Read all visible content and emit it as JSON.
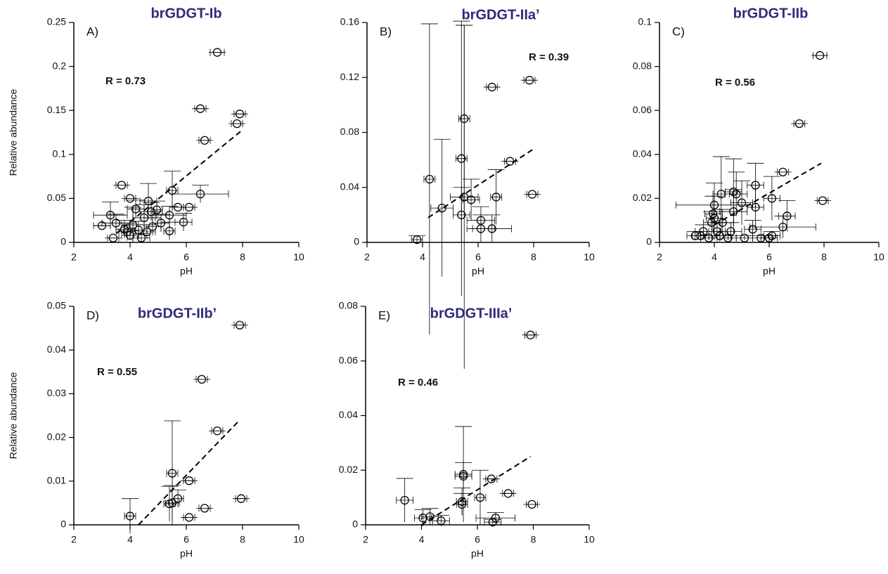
{
  "chart_data": [
    {
      "type": "scatter",
      "title": "brGDGT-Ib",
      "panel_label": "A)",
      "annotation": "R = 0.73",
      "x_label": "pH",
      "y_label": "Relative abundance",
      "title_color": "#2e2a7a",
      "color": "#000000",
      "x": [
        7.1,
        6.5,
        7.9,
        7.8,
        6.65,
        3.7,
        5.5,
        6.5,
        4.0,
        4.65,
        6.1,
        5.7,
        4.95,
        4.75,
        4.2,
        3.3,
        5.4,
        4.5,
        3.5,
        3.0,
        5.9,
        4.1,
        3.8,
        4.3,
        3.9,
        4.6,
        5.4,
        5.1,
        3.4,
        4.0,
        4.4,
        4.8
      ],
      "values": [
        0.216,
        0.152,
        0.146,
        0.135,
        0.116,
        0.065,
        0.059,
        0.055,
        0.05,
        0.047,
        0.04,
        0.04,
        0.037,
        0.035,
        0.038,
        0.031,
        0.031,
        0.028,
        0.022,
        0.019,
        0.023,
        0.02,
        0.015,
        0.014,
        0.012,
        0.012,
        0.013,
        0.022,
        0.005,
        0.008,
        0.005,
        0.018
      ],
      "xerr": [
        0.25,
        0.2,
        0.2,
        0.2,
        0.2,
        0.2,
        0.2,
        1.0,
        0.2,
        0.3,
        0.2,
        0.2,
        0.2,
        0.4,
        0.3,
        0.6,
        0.6,
        0.4,
        0.5,
        0.3,
        0.3,
        0.4,
        0.3,
        0.3,
        0.3,
        0.3,
        0.2,
        0.3,
        0.2,
        0.3,
        0.3,
        0.3
      ],
      "yerr": [
        0,
        0,
        0,
        0,
        0,
        0,
        0.022,
        0.01,
        0,
        0.02,
        0,
        0,
        0.01,
        0.01,
        0.01,
        0.015,
        0.01,
        0.015,
        0.01,
        0,
        0.01,
        0.02,
        0.01,
        0.01,
        0.01,
        0.008,
        0.01,
        0.01,
        0,
        0.005,
        0.005,
        0.01
      ],
      "trendline": {
        "x": [
          3.5,
          8
        ],
        "y": [
          0.01,
          0.128
        ]
      },
      "xlim": [
        2,
        10
      ],
      "ylim": [
        0,
        0.25
      ],
      "xticks": [
        2,
        4,
        6,
        8,
        10
      ],
      "yticks": [
        0,
        0.05,
        0.1,
        0.15,
        0.2,
        0.25
      ]
    },
    {
      "type": "scatter",
      "title": "brGDGT-IIa’",
      "panel_label": "B)",
      "annotation": "R = 0.39",
      "x_label": "pH",
      "title_color": "#2e2a7a",
      "color": "#000000",
      "x": [
        7.85,
        6.5,
        5.5,
        7.15,
        5.4,
        4.25,
        5.5,
        5.75,
        6.65,
        7.95,
        4.7,
        5.4,
        6.1,
        6.1,
        6.5,
        3.8
      ],
      "values": [
        0.118,
        0.113,
        0.09,
        0.059,
        0.061,
        0.046,
        0.033,
        0.031,
        0.033,
        0.035,
        0.025,
        0.02,
        0.016,
        0.01,
        0.01,
        0.002
      ],
      "xerr": [
        0.2,
        0.2,
        0.2,
        0.2,
        0.2,
        0.2,
        0.5,
        0.3,
        0.2,
        0.2,
        0.4,
        0.3,
        0.5,
        0.5,
        0.7,
        0.2
      ],
      "yerr": [
        0,
        0,
        0.068,
        0,
        0.1,
        0.113,
        0.125,
        0.015,
        0.02,
        0,
        0.05,
        0.02,
        0.01,
        0.01,
        0.01,
        0.003
      ],
      "trendline": {
        "x": [
          4.2,
          8
        ],
        "y": [
          0.018,
          0.068
        ]
      },
      "xlim": [
        2,
        10
      ],
      "ylim": [
        0,
        0.16
      ],
      "xticks": [
        2,
        4,
        6,
        8,
        10
      ],
      "yticks": [
        0,
        0.04,
        0.08,
        0.12,
        0.16
      ]
    },
    {
      "type": "scatter",
      "title": "brGDGT-IIb",
      "panel_label": "C)",
      "annotation": "R = 0.56",
      "x_label": "pH",
      "title_color": "#2e2a7a",
      "color": "#000000",
      "x": [
        7.85,
        7.1,
        6.5,
        5.5,
        4.7,
        4.25,
        4.8,
        6.1,
        7.95,
        5.0,
        4.0,
        5.5,
        4.7,
        3.95,
        4.0,
        6.65,
        3.9,
        4.3,
        6.5,
        5.4,
        4.6,
        4.1,
        3.6,
        3.3,
        3.5,
        4.2,
        5.1,
        5.7,
        6.0,
        6.1,
        4.5,
        3.8
      ],
      "values": [
        0.085,
        0.054,
        0.032,
        0.026,
        0.023,
        0.022,
        0.022,
        0.02,
        0.019,
        0.018,
        0.017,
        0.016,
        0.014,
        0.013,
        0.011,
        0.012,
        0.009,
        0.009,
        0.007,
        0.006,
        0.005,
        0.005,
        0.005,
        0.003,
        0.003,
        0.003,
        0.002,
        0.002,
        0.002,
        0.003,
        0.002,
        0.002
      ],
      "xerr": [
        0.25,
        0.2,
        0.2,
        0.3,
        0.3,
        0.3,
        0.4,
        0.3,
        0.2,
        0.4,
        1.4,
        0.3,
        0.5,
        0.3,
        0.3,
        0.3,
        0.3,
        0.4,
        1.2,
        0.3,
        0.4,
        0.3,
        0.3,
        0.3,
        0.3,
        0.3,
        0.3,
        0.3,
        0.3,
        0.3,
        0.3,
        0.3
      ],
      "yerr": [
        0,
        0,
        0,
        0.01,
        0.015,
        0.017,
        0.01,
        0.01,
        0,
        0.01,
        0.01,
        0.01,
        0.01,
        0.008,
        0.01,
        0.007,
        0.005,
        0.006,
        0.005,
        0.004,
        0.004,
        0.004,
        0.003,
        0.002,
        0.002,
        0.002,
        0.001,
        0.001,
        0.001,
        0.002,
        0.001,
        0.001
      ],
      "trendline": {
        "x": [
          4.0,
          7.9
        ],
        "y": [
          0.008,
          0.036
        ]
      },
      "xlim": [
        2,
        10
      ],
      "ylim": [
        0,
        0.1
      ],
      "xticks": [
        2,
        4,
        6,
        8,
        10
      ],
      "yticks": [
        0,
        0.02,
        0.04,
        0.06,
        0.08,
        0.1
      ]
    },
    {
      "type": "scatter",
      "title": "brGDGT-IIb’",
      "panel_label": "D)",
      "annotation": "R = 0.55",
      "x_label": "pH",
      "y_label": "Relative abundance",
      "title_color": "#2e2a7a",
      "color": "#000000",
      "x": [
        7.9,
        6.55,
        7.1,
        5.5,
        6.1,
        7.95,
        5.7,
        5.5,
        5.4,
        6.65,
        4.0,
        6.1
      ],
      "values": [
        0.0457,
        0.0333,
        0.0215,
        0.0118,
        0.0101,
        0.006,
        0.006,
        0.005,
        0.0048,
        0.0038,
        0.002,
        0.0017
      ],
      "xerr": [
        0.2,
        0.2,
        0.2,
        0.2,
        0.2,
        0.2,
        0.2,
        0.25,
        0.2,
        0.2,
        0.2,
        0.2
      ],
      "yerr": [
        0,
        0,
        0,
        0.012,
        0,
        0,
        0.002,
        0.004,
        0.004,
        0,
        0.004,
        0
      ],
      "trendline": {
        "x": [
          4.3,
          7.9
        ],
        "y": [
          0,
          0.024
        ]
      },
      "xlim": [
        2,
        10
      ],
      "ylim": [
        0,
        0.05
      ],
      "xticks": [
        2,
        4,
        6,
        8,
        10
      ],
      "yticks": [
        0,
        0.01,
        0.02,
        0.03,
        0.04,
        0.05
      ]
    },
    {
      "type": "scatter",
      "title": "brGDGT-IIIa’",
      "panel_label": "E)",
      "annotation": "R = 0.46",
      "x_label": "pH",
      "title_color": "#2e2a7a",
      "color": "#000000",
      "x": [
        7.9,
        5.5,
        5.5,
        6.5,
        7.1,
        6.1,
        3.4,
        5.45,
        5.45,
        7.95,
        4.3,
        4.05,
        6.65,
        4.7,
        6.55
      ],
      "values": [
        0.0695,
        0.0185,
        0.0178,
        0.0168,
        0.0115,
        0.01,
        0.009,
        0.0085,
        0.0075,
        0.0075,
        0.003,
        0.0025,
        0.0025,
        0.0015,
        0.001
      ],
      "xerr": [
        0.2,
        0.3,
        0.3,
        0.2,
        0.2,
        0.2,
        0.3,
        0.2,
        0.2,
        0.2,
        0.3,
        0.3,
        0.7,
        0.3,
        0.3
      ],
      "yerr": [
        0,
        0.0175,
        0.005,
        0,
        0,
        0.01,
        0.008,
        0.005,
        0.004,
        0,
        0.003,
        0.003,
        0.002,
        0.002,
        0.001
      ],
      "trendline": {
        "x": [
          4.0,
          7.9
        ],
        "y": [
          0,
          0.025
        ]
      },
      "xlim": [
        2,
        10
      ],
      "ylim": [
        0,
        0.08
      ],
      "xticks": [
        2,
        4,
        6,
        8,
        10
      ],
      "yticks": [
        0,
        0.02,
        0.04,
        0.06,
        0.08
      ]
    }
  ]
}
